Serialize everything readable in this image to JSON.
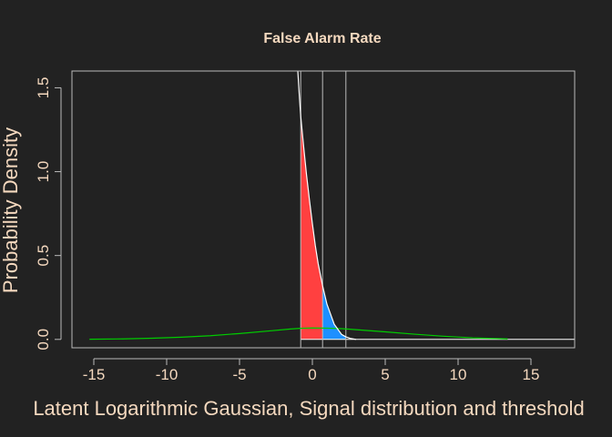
{
  "chart_data": {
    "type": "area",
    "title": "False Alarm Rate",
    "xlabel": "Latent Logarithmic Gaussian, Signal distribution  and threshold",
    "ylabel": "Probability Density",
    "xlim": [
      -16.5,
      18
    ],
    "ylim": [
      -0.05,
      1.6
    ],
    "xticks": [
      -15,
      -10,
      -5,
      0,
      5,
      10,
      15
    ],
    "yticks": [
      0.0,
      0.5,
      1.0,
      1.5
    ],
    "xtick_labels": [
      "-15",
      "-10",
      "-5",
      "0",
      "5",
      "10",
      "15"
    ],
    "ytick_labels": [
      "0.0",
      "0.5",
      "1.0",
      "1.5"
    ],
    "thresholds": [
      -0.8,
      0.7,
      2.3
    ],
    "series": [
      {
        "kind": "line",
        "color": "#00CC00",
        "x": [
          -15.3,
          -13,
          -11,
          -9,
          -7,
          -5,
          -3,
          -1.5,
          -0.8,
          0,
          1,
          2,
          3,
          5,
          7,
          9,
          11,
          13.4
        ],
        "y": [
          0.001,
          0.003,
          0.007,
          0.013,
          0.022,
          0.035,
          0.05,
          0.062,
          0.066,
          0.068,
          0.067,
          0.064,
          0.058,
          0.045,
          0.031,
          0.019,
          0.009,
          0.003
        ]
      },
      {
        "kind": "fill",
        "color": "#FF4040",
        "x": [
          -0.8,
          -0.6,
          -0.4,
          -0.2,
          0,
          0.2,
          0.4,
          0.6,
          0.7
        ],
        "y": [
          1.33,
          1.15,
          0.98,
          0.83,
          0.69,
          0.56,
          0.45,
          0.36,
          0.32
        ]
      },
      {
        "kind": "fill",
        "color": "#1E90FF",
        "x": [
          0.7,
          0.9,
          1.1,
          1.3,
          1.5,
          1.7,
          1.9,
          2.1,
          2.3
        ],
        "y": [
          0.32,
          0.24,
          0.18,
          0.13,
          0.09,
          0.06,
          0.04,
          0.025,
          0.015
        ]
      },
      {
        "kind": "line",
        "color": "#FFFFFF",
        "x": [
          -1.0,
          -0.9,
          -0.8,
          -0.6,
          -0.4,
          -0.2,
          0,
          0.2,
          0.4,
          0.7,
          1.0,
          1.5,
          2.0,
          2.3,
          2.6,
          3.0
        ],
        "y": [
          1.6,
          1.46,
          1.33,
          1.15,
          0.98,
          0.83,
          0.69,
          0.56,
          0.45,
          0.32,
          0.21,
          0.09,
          0.03,
          0.015,
          0.006,
          0.0
        ]
      }
    ],
    "colors": {
      "background": "#222222",
      "text": "#F5D9BF",
      "frame": "#BBBBBB",
      "threshold_lines": "#BBBBBB",
      "baseline": "#FFFFFF"
    }
  }
}
